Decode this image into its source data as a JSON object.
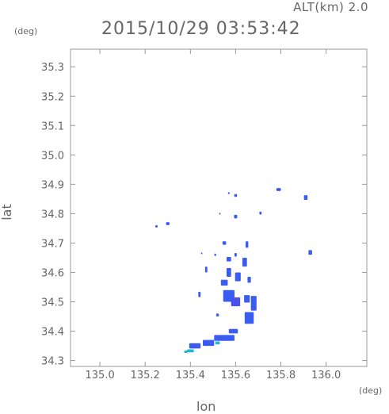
{
  "header": {
    "altitude": "ALT(km) 2.0",
    "timestamp": "2015/10/29 03:53:42"
  },
  "axis_units": {
    "y": "(deg)",
    "x": "(deg)"
  },
  "chart_data": {
    "type": "heatmap",
    "xlabel": "lon",
    "ylabel": "lat",
    "xlim": [
      134.87,
      136.18
    ],
    "ylim": [
      34.28,
      35.36
    ],
    "xticks": [
      135.0,
      135.2,
      135.4,
      135.6,
      135.8,
      136.0
    ],
    "yticks": [
      34.3,
      34.4,
      34.5,
      34.6,
      34.7,
      34.8,
      34.9,
      35.0,
      35.1,
      35.2,
      35.3
    ],
    "grid": false,
    "colors": {
      "low": "#22b8d0",
      "mid": "#3a5cf0",
      "high": "#4a52e8",
      "axis": "#999999"
    },
    "cells": [
      {
        "lon": 135.25,
        "lat": 34.757,
        "w": 0.01,
        "h": 0.008,
        "level": "mid"
      },
      {
        "lon": 135.3,
        "lat": 34.766,
        "w": 0.015,
        "h": 0.01,
        "level": "mid"
      },
      {
        "lon": 135.57,
        "lat": 34.87,
        "w": 0.008,
        "h": 0.006,
        "level": "mid"
      },
      {
        "lon": 135.6,
        "lat": 34.862,
        "w": 0.012,
        "h": 0.01,
        "level": "mid"
      },
      {
        "lon": 135.79,
        "lat": 34.882,
        "w": 0.02,
        "h": 0.01,
        "level": "mid"
      },
      {
        "lon": 135.91,
        "lat": 34.855,
        "w": 0.016,
        "h": 0.016,
        "level": "mid"
      },
      {
        "lon": 135.71,
        "lat": 34.802,
        "w": 0.01,
        "h": 0.01,
        "level": "mid"
      },
      {
        "lon": 135.6,
        "lat": 34.79,
        "w": 0.014,
        "h": 0.012,
        "level": "mid"
      },
      {
        "lon": 135.53,
        "lat": 34.8,
        "w": 0.006,
        "h": 0.006,
        "level": "mid"
      },
      {
        "lon": 135.55,
        "lat": 34.7,
        "w": 0.016,
        "h": 0.012,
        "level": "mid"
      },
      {
        "lon": 135.65,
        "lat": 34.695,
        "w": 0.012,
        "h": 0.022,
        "level": "mid"
      },
      {
        "lon": 135.93,
        "lat": 34.668,
        "w": 0.016,
        "h": 0.016,
        "level": "mid"
      },
      {
        "lon": 135.45,
        "lat": 34.665,
        "w": 0.006,
        "h": 0.006,
        "level": "mid"
      },
      {
        "lon": 135.51,
        "lat": 34.66,
        "w": 0.008,
        "h": 0.008,
        "level": "mid"
      },
      {
        "lon": 135.57,
        "lat": 34.645,
        "w": 0.02,
        "h": 0.015,
        "level": "mid"
      },
      {
        "lon": 135.6,
        "lat": 34.66,
        "w": 0.01,
        "h": 0.012,
        "level": "mid"
      },
      {
        "lon": 135.64,
        "lat": 34.635,
        "w": 0.02,
        "h": 0.03,
        "level": "mid"
      },
      {
        "lon": 135.47,
        "lat": 34.61,
        "w": 0.01,
        "h": 0.02,
        "level": "mid"
      },
      {
        "lon": 135.57,
        "lat": 34.6,
        "w": 0.02,
        "h": 0.03,
        "level": "mid"
      },
      {
        "lon": 135.61,
        "lat": 34.585,
        "w": 0.025,
        "h": 0.03,
        "level": "mid"
      },
      {
        "lon": 135.55,
        "lat": 34.565,
        "w": 0.03,
        "h": 0.02,
        "level": "mid"
      },
      {
        "lon": 135.66,
        "lat": 34.575,
        "w": 0.015,
        "h": 0.02,
        "level": "mid"
      },
      {
        "lon": 135.44,
        "lat": 34.525,
        "w": 0.01,
        "h": 0.018,
        "level": "mid"
      },
      {
        "lon": 135.57,
        "lat": 34.52,
        "w": 0.05,
        "h": 0.04,
        "level": "mid"
      },
      {
        "lon": 135.6,
        "lat": 34.5,
        "w": 0.04,
        "h": 0.03,
        "level": "high"
      },
      {
        "lon": 135.68,
        "lat": 34.495,
        "w": 0.025,
        "h": 0.05,
        "level": "mid"
      },
      {
        "lon": 135.65,
        "lat": 34.51,
        "w": 0.025,
        "h": 0.025,
        "level": "mid"
      },
      {
        "lon": 135.66,
        "lat": 34.445,
        "w": 0.04,
        "h": 0.04,
        "level": "mid"
      },
      {
        "lon": 135.52,
        "lat": 34.455,
        "w": 0.012,
        "h": 0.01,
        "level": "mid"
      },
      {
        "lon": 135.59,
        "lat": 34.4,
        "w": 0.04,
        "h": 0.015,
        "level": "mid"
      },
      {
        "lon": 135.55,
        "lat": 34.377,
        "w": 0.09,
        "h": 0.02,
        "level": "mid"
      },
      {
        "lon": 135.48,
        "lat": 34.36,
        "w": 0.05,
        "h": 0.02,
        "level": "mid"
      },
      {
        "lon": 135.42,
        "lat": 34.35,
        "w": 0.05,
        "h": 0.018,
        "level": "mid"
      },
      {
        "lon": 135.52,
        "lat": 34.36,
        "w": 0.02,
        "h": 0.01,
        "level": "low"
      },
      {
        "lon": 135.4,
        "lat": 34.333,
        "w": 0.03,
        "h": 0.01,
        "level": "low"
      },
      {
        "lon": 135.38,
        "lat": 34.33,
        "w": 0.015,
        "h": 0.008,
        "level": "low"
      }
    ]
  }
}
